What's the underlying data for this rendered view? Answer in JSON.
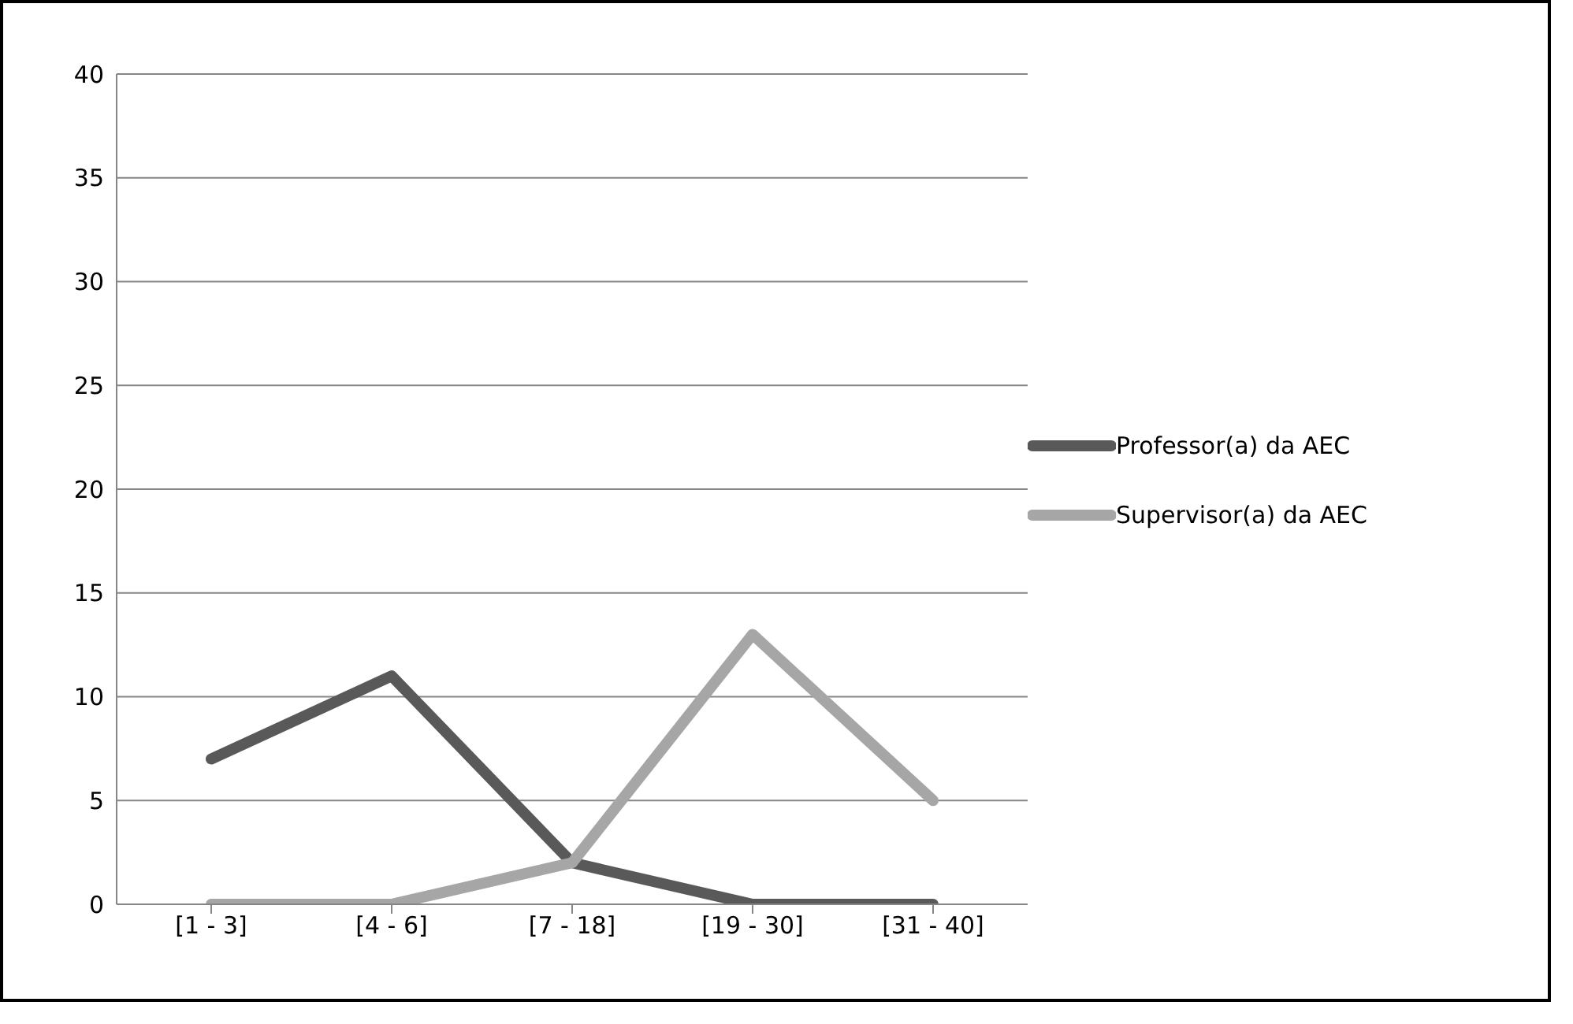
{
  "chart_data": {
    "type": "line",
    "categories": [
      "[1 - 3]",
      "[4 - 6]",
      "[7 - 18]",
      "[19 - 30]",
      "[31 - 40]"
    ],
    "series": [
      {
        "name": "Professor(a) da AEC",
        "color": "#595959",
        "values": [
          7,
          11,
          2,
          0,
          0
        ]
      },
      {
        "name": "Supervisor(a) da AEC",
        "color": "#a6a6a6",
        "values": [
          0,
          0,
          2,
          13,
          5
        ]
      }
    ],
    "ylim": [
      0,
      40
    ],
    "yticks": [
      0,
      5,
      10,
      15,
      20,
      25,
      30,
      35,
      40
    ],
    "grid": "y",
    "legend": "right",
    "marker": "none",
    "line_style": "solid"
  }
}
